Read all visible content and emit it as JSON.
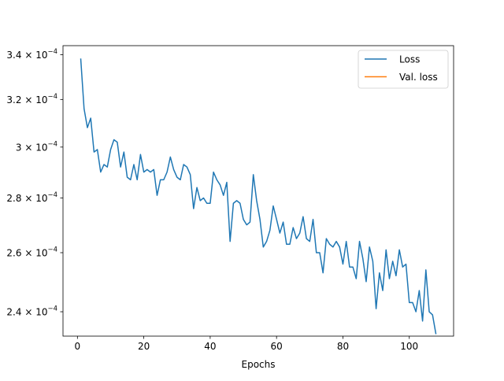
{
  "chart_data": {
    "type": "line",
    "title": "",
    "xlabel": "Epochs",
    "ylabel": "",
    "y_scale": "log",
    "xlim": [
      -4.35,
      113.35
    ],
    "ylim": [
      0.0002322,
      0.0003442
    ],
    "grid": false,
    "legend_placement": "top-right",
    "x_ticks": [
      {
        "value": 0,
        "label": "0"
      },
      {
        "value": 20,
        "label": "20"
      },
      {
        "value": 40,
        "label": "40"
      },
      {
        "value": 60,
        "label": "60"
      },
      {
        "value": 80,
        "label": "80"
      },
      {
        "value": 100,
        "label": "100"
      }
    ],
    "y_ticks": [
      {
        "value": 0.00024,
        "mantissa": "2.4",
        "exponent": "−4"
      },
      {
        "value": 0.00026,
        "mantissa": "2.6",
        "exponent": "−4"
      },
      {
        "value": 0.00028,
        "mantissa": "2.8",
        "exponent": "−4"
      },
      {
        "value": 0.0003,
        "mantissa": "3",
        "exponent": "−4"
      },
      {
        "value": 0.00032,
        "mantissa": "3.2",
        "exponent": "−4"
      },
      {
        "value": 0.00034,
        "mantissa": "3.4",
        "exponent": "−4"
      }
    ],
    "series": [
      {
        "name": "Loss",
        "color": "#1f77b4",
        "x": [
          1,
          2,
          3,
          4,
          5,
          6,
          7,
          8,
          9,
          10,
          11,
          12,
          13,
          14,
          15,
          16,
          17,
          18,
          19,
          20,
          21,
          22,
          23,
          24,
          25,
          26,
          27,
          28,
          29,
          30,
          31,
          32,
          33,
          34,
          35,
          36,
          37,
          38,
          39,
          40,
          41,
          42,
          43,
          44,
          45,
          46,
          47,
          48,
          49,
          50,
          51,
          52,
          53,
          54,
          55,
          56,
          57,
          58,
          59,
          60,
          61,
          62,
          63,
          64,
          65,
          66,
          67,
          68,
          69,
          70,
          71,
          72,
          73,
          74,
          75,
          76,
          77,
          78,
          79,
          80,
          81,
          82,
          83,
          84,
          85,
          86,
          87,
          88,
          89,
          90,
          91,
          92,
          93,
          94,
          95,
          96,
          97,
          98,
          99,
          100,
          101,
          102,
          103,
          104,
          105,
          106,
          107,
          108
        ],
        "values": [
          0.000338,
          0.000316,
          0.000308,
          0.000312,
          0.000298,
          0.000299,
          0.00029,
          0.000293,
          0.000292,
          0.000299,
          0.000303,
          0.000302,
          0.000292,
          0.000298,
          0.000288,
          0.000287,
          0.000293,
          0.000287,
          0.000297,
          0.00029,
          0.000291,
          0.00029,
          0.000291,
          0.000281,
          0.000287,
          0.000287,
          0.00029,
          0.000296,
          0.000291,
          0.000288,
          0.000287,
          0.000293,
          0.000292,
          0.000289,
          0.000276,
          0.000284,
          0.000279,
          0.00028,
          0.000278,
          0.000278,
          0.00029,
          0.000287,
          0.000285,
          0.000281,
          0.000286,
          0.000264,
          0.000278,
          0.000279,
          0.000278,
          0.000272,
          0.00027,
          0.000271,
          0.000289,
          0.000279,
          0.000272,
          0.000262,
          0.000264,
          0.000268,
          0.000277,
          0.000272,
          0.000267,
          0.000271,
          0.000263,
          0.000263,
          0.000269,
          0.000265,
          0.000267,
          0.000273,
          0.000265,
          0.000264,
          0.000272,
          0.00026,
          0.00026,
          0.000253,
          0.000265,
          0.000263,
          0.000262,
          0.000264,
          0.000262,
          0.000256,
          0.000264,
          0.000255,
          0.000255,
          0.000251,
          0.000264,
          0.000258,
          0.00025,
          0.000262,
          0.000257,
          0.000241,
          0.000253,
          0.000247,
          0.000261,
          0.000251,
          0.000257,
          0.000252,
          0.000261,
          0.000255,
          0.000256,
          0.000243,
          0.000243,
          0.00024,
          0.000247,
          0.000237,
          0.000254,
          0.00024,
          0.000239,
          0.000233
        ]
      },
      {
        "name": "Val. loss",
        "color": "#ff7f0e",
        "x": [],
        "values": []
      }
    ]
  }
}
